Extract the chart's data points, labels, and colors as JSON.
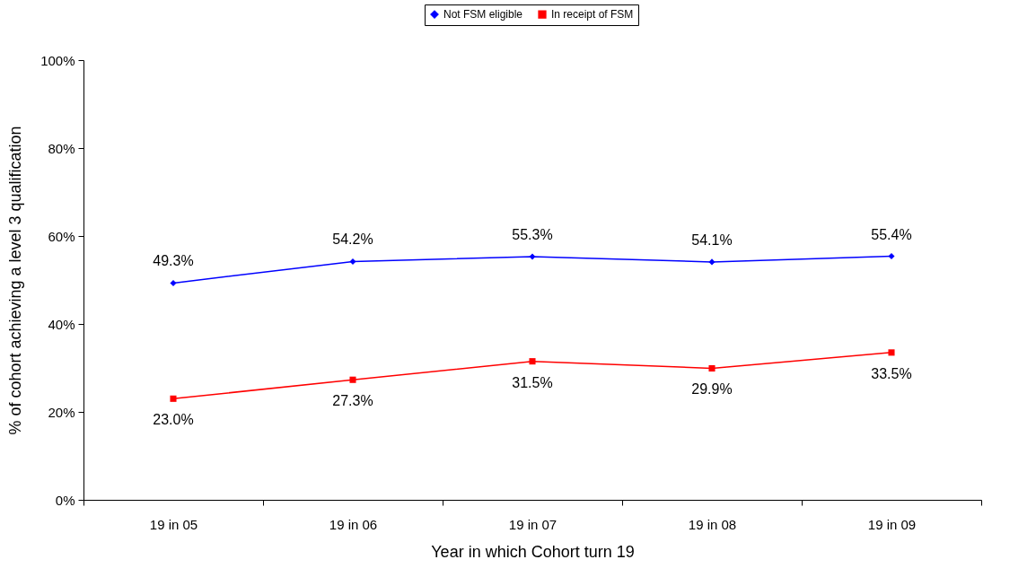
{
  "chart_data": {
    "type": "line",
    "xlabel": "Year in which Cohort turn 19",
    "ylabel": "% of cohort achieving a level 3 qualification",
    "categories": [
      "19 in 05",
      "19 in 06",
      "19 in 07",
      "19 in 08",
      "19 in 09"
    ],
    "series": [
      {
        "name": "Not FSM eligible",
        "color": "#0000ff",
        "marker": "diamond",
        "values": [
          49.3,
          54.2,
          55.3,
          54.1,
          55.4
        ],
        "value_labels": [
          "49.3%",
          "54.2%",
          "55.3%",
          "54.1%",
          "55.4%"
        ]
      },
      {
        "name": "In receipt of FSM",
        "color": "#ff0000",
        "marker": "square",
        "values": [
          23.0,
          27.3,
          31.5,
          29.9,
          33.5
        ],
        "value_labels": [
          "23.0%",
          "27.3%",
          "31.5%",
          "29.9%",
          "33.5%"
        ]
      }
    ],
    "ylim": [
      0,
      100
    ],
    "yticks": [
      {
        "value": 0,
        "label": "0%"
      },
      {
        "value": 20,
        "label": "20%"
      },
      {
        "value": 40,
        "label": "40%"
      },
      {
        "value": 60,
        "label": "60%"
      },
      {
        "value": 80,
        "label": "80%"
      },
      {
        "value": 100,
        "label": "100%"
      }
    ],
    "grid": false,
    "legend": "top",
    "line_style": "solid"
  }
}
